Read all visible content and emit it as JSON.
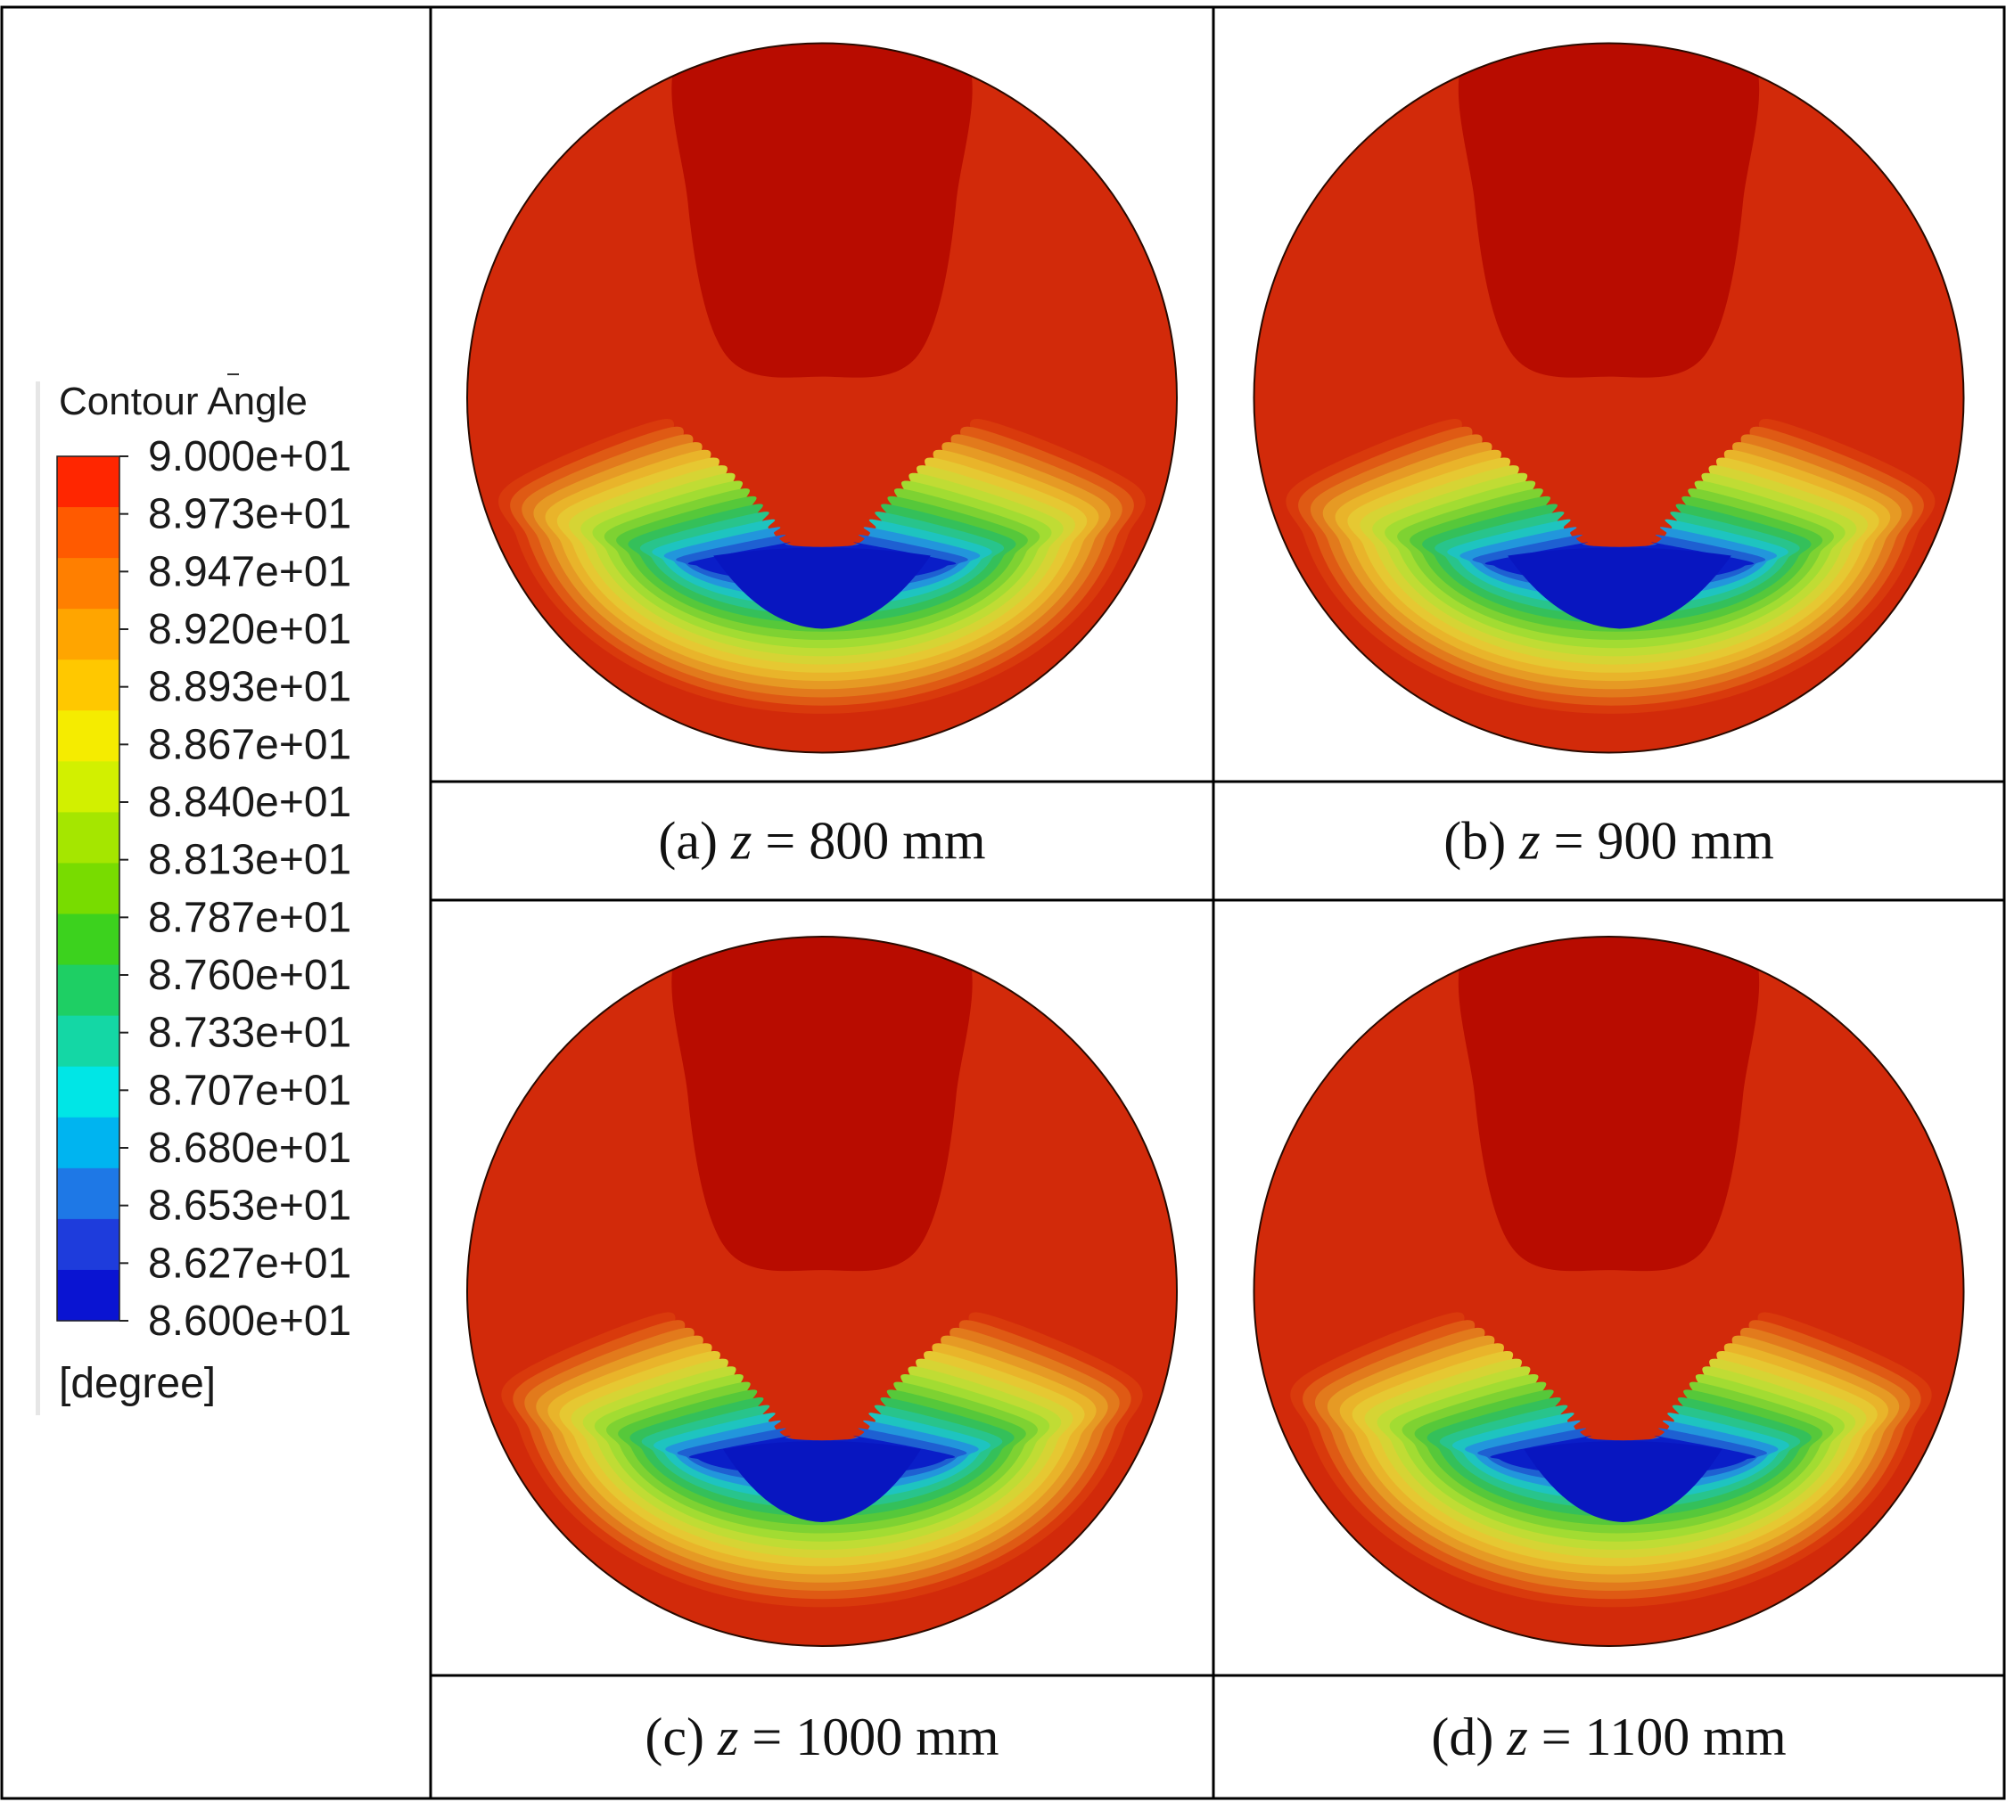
{
  "legend": {
    "title": "Contour Angle",
    "unit": "[degree]",
    "min": 86.0,
    "max": 90.0,
    "levels": 15,
    "tick_labels": [
      "9.000e+01",
      "8.973e+01",
      "8.947e+01",
      "8.920e+01",
      "8.893e+01",
      "8.867e+01",
      "8.840e+01",
      "8.813e+01",
      "8.787e+01",
      "8.760e+01",
      "8.733e+01",
      "8.707e+01",
      "8.680e+01",
      "8.653e+01",
      "8.627e+01",
      "8.600e+01"
    ],
    "colors": [
      "#ff2600",
      "#ff5a00",
      "#ff7f00",
      "#ffa500",
      "#ffc800",
      "#f5ec00",
      "#d2f000",
      "#a5e600",
      "#78dc00",
      "#3cd21e",
      "#1ecf64",
      "#14d7a5",
      "#00e6e6",
      "#00b4f0",
      "#1e78e6",
      "#1e3cdc",
      "#0a14d2"
    ]
  },
  "panels": [
    {
      "prefix": "(a) ",
      "var": "z",
      "suffix": " = 800 mm",
      "min_band_width": 0.68,
      "min_band_center": 0.0
    },
    {
      "prefix": "(b) ",
      "var": "z",
      "suffix": " = 900 mm",
      "min_band_width": 0.7,
      "min_band_center": 0.03
    },
    {
      "prefix": "(c) ",
      "var": "z",
      "suffix": " = 1000 mm",
      "min_band_width": 0.62,
      "min_band_center": 0.0
    },
    {
      "prefix": "(d) ",
      "var": "z",
      "suffix": " = 1100 mm",
      "min_band_width": 0.62,
      "min_band_center": 0.04
    }
  ],
  "contour_colors": [
    "#c00f00",
    "#c81a00",
    "#d12600",
    "#d93a0c",
    "#df5a14",
    "#e27a1c",
    "#e69a24",
    "#e9b42a",
    "#e6c832",
    "#d6d434",
    "#c0dc34",
    "#a2dc32",
    "#7ed232",
    "#56c83a",
    "#34c05a",
    "#28c48c",
    "#1ec4c0",
    "#2296dc",
    "#1e60d2",
    "#0a1ec8"
  ]
}
